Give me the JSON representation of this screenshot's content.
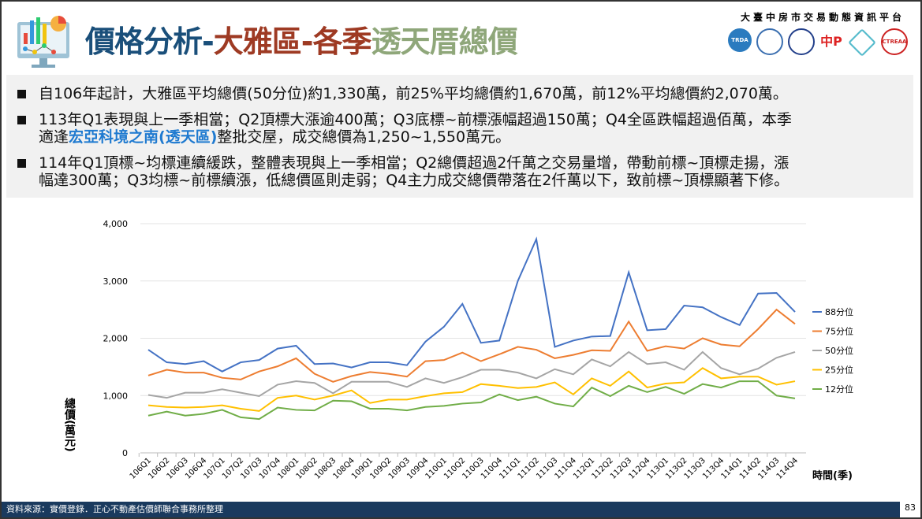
{
  "header": {
    "title_part1": "價格分析-",
    "title_part2": "大雅區-各季",
    "title_part3": "透天厝總價",
    "org": "大臺中房市交易動態資訊平台",
    "logos": [
      "TRDA",
      "DD",
      "edu",
      "中P",
      "hex",
      "CTREAA"
    ]
  },
  "bullets": [
    {
      "text": "自106年起計，大雅區平均總價(50分位)約1,330萬，前25%平均總價約1,670萬，前12%平均總價約2,070萬。"
    },
    {
      "line1": "113年Q1表現與上一季相當；Q2頂標大漲逾400萬；Q3底標~前標漲幅超過150萬；Q4全區跌幅超過佰萬，本季",
      "line2_pre": "適逢",
      "highlight": "宏亞科境之南(透天區)",
      "line2_post": "整批交屋，成交總價為1,250~1,550萬元。"
    },
    {
      "line1": "114年Q1頂標~均標連續緩跌，整體表現與上一季相當；Q2總價超過2仟萬之交易量增，帶動前標~頂標走揚，漲",
      "line2": "幅達300萬；Q3均標~前標續漲，低總價區則走弱；Q4主力成交總價帶落在2仟萬以下，致前標~頂標顯著下修。"
    }
  ],
  "footer": {
    "source": "資料來源：實價登錄．正心不動產估價師聯合事務所整理",
    "page": "83"
  },
  "chart_data": {
    "type": "line",
    "title": "",
    "xlabel": "時間(季)",
    "ylabel": "總價(萬元)",
    "ylim": [
      0,
      4000
    ],
    "yticks": [
      "0",
      "1,000",
      "2,000",
      "3,000",
      "4,000"
    ],
    "grid": "horizontal",
    "legend": "right",
    "categories": [
      "106Q1",
      "106Q2",
      "106Q3",
      "106Q4",
      "107Q1",
      "107Q2",
      "107Q3",
      "107Q4",
      "108Q1",
      "108Q2",
      "108Q3",
      "108Q4",
      "109Q1",
      "109Q2",
      "109Q3",
      "109Q4",
      "110Q1",
      "110Q2",
      "110Q3",
      "110Q4",
      "111Q1",
      "111Q2",
      "111Q3",
      "111Q4",
      "112Q1",
      "112Q2",
      "112Q3",
      "112Q4",
      "113Q1",
      "113Q2",
      "113Q3",
      "113Q4",
      "114Q1",
      "114Q2",
      "114Q3",
      "114Q4"
    ],
    "series": [
      {
        "name": "88分位",
        "color": "#4472c4",
        "values": [
          1800,
          1580,
          1550,
          1600,
          1420,
          1580,
          1620,
          1820,
          1870,
          1550,
          1560,
          1490,
          1580,
          1580,
          1530,
          1940,
          2200,
          2600,
          1920,
          1960,
          3000,
          3730,
          1850,
          1960,
          2030,
          2040,
          3150,
          2140,
          2160,
          2570,
          2540,
          2370,
          2230,
          2780,
          2790,
          2460
        ]
      },
      {
        "name": "75分位",
        "color": "#ed7d31",
        "values": [
          1350,
          1450,
          1400,
          1400,
          1310,
          1280,
          1420,
          1510,
          1650,
          1380,
          1240,
          1340,
          1410,
          1380,
          1330,
          1600,
          1620,
          1750,
          1600,
          1720,
          1850,
          1800,
          1650,
          1710,
          1790,
          1780,
          2290,
          1780,
          1860,
          1820,
          2000,
          1890,
          1860,
          2160,
          2500,
          2250
        ]
      },
      {
        "name": "50分位",
        "color": "#a5a5a5",
        "values": [
          1010,
          960,
          1050,
          1050,
          1110,
          1050,
          990,
          1190,
          1250,
          1220,
          1040,
          1240,
          1240,
          1240,
          1150,
          1300,
          1220,
          1320,
          1450,
          1450,
          1400,
          1300,
          1460,
          1370,
          1630,
          1510,
          1760,
          1550,
          1580,
          1450,
          1760,
          1480,
          1370,
          1470,
          1660,
          1760
        ]
      },
      {
        "name": "25分位",
        "color": "#ffc000",
        "values": [
          830,
          800,
          790,
          800,
          830,
          770,
          730,
          960,
          1000,
          930,
          1000,
          1090,
          870,
          930,
          930,
          990,
          1040,
          1060,
          1200,
          1170,
          1130,
          1150,
          1230,
          1020,
          1300,
          1170,
          1420,
          1140,
          1210,
          1230,
          1480,
          1300,
          1330,
          1330,
          1190,
          1250
        ]
      },
      {
        "name": "12分位",
        "color": "#70ad47",
        "values": [
          650,
          720,
          650,
          680,
          750,
          620,
          590,
          790,
          750,
          740,
          910,
          900,
          770,
          770,
          740,
          800,
          820,
          860,
          880,
          1020,
          920,
          980,
          860,
          810,
          1140,
          990,
          1170,
          1060,
          1150,
          1030,
          1200,
          1140,
          1250,
          1250,
          1000,
          950
        ]
      }
    ]
  }
}
